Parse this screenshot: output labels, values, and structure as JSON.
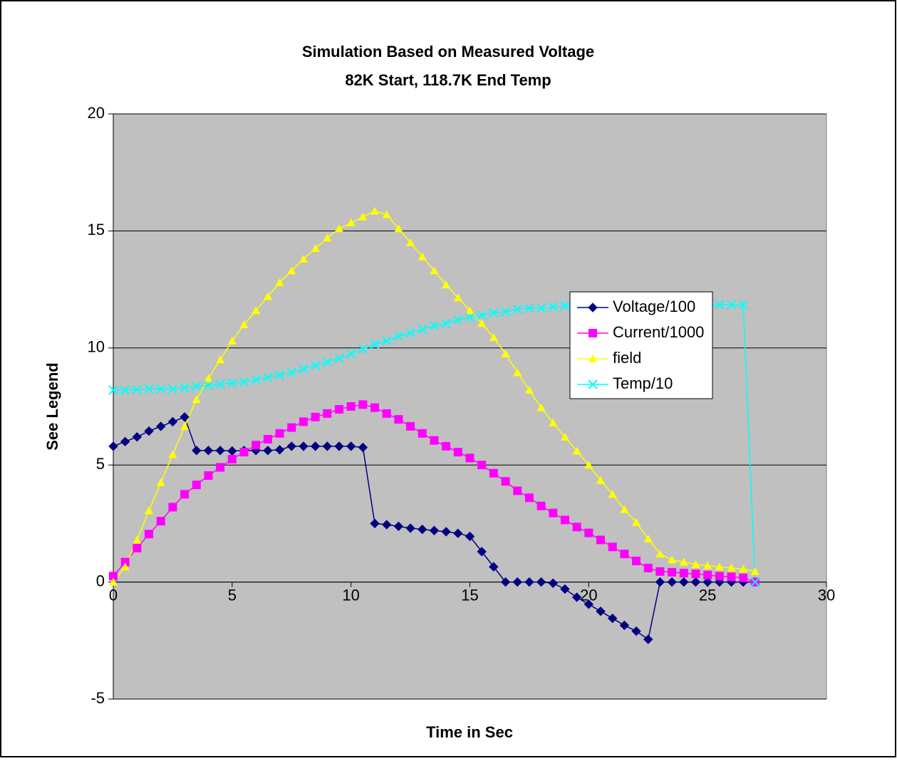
{
  "chart_data": {
    "type": "line",
    "title": "Simulation Based on Measured Voltage",
    "subtitle": "82K Start, 118.7K End Temp",
    "x_label": "Time in Sec",
    "y_label": "See Legend",
    "x": [
      0,
      0.5,
      1,
      1.5,
      2,
      2.5,
      3,
      3.5,
      4,
      4.5,
      5,
      5.5,
      6,
      6.5,
      7,
      7.5,
      8,
      8.5,
      9,
      9.5,
      10,
      10.5,
      11,
      11.5,
      12,
      12.5,
      13,
      13.5,
      14,
      14.5,
      15,
      15.5,
      16,
      16.5,
      17,
      17.5,
      18,
      18.5,
      19,
      19.5,
      20,
      20.5,
      21,
      21.5,
      22,
      22.5,
      23,
      23.5,
      24,
      24.5,
      25,
      25.5,
      26,
      26.5,
      27
    ],
    "series": [
      {
        "name": "Voltage/100",
        "color": "#000080",
        "marker": "diamond",
        "values": [
          5.8,
          6.0,
          6.2,
          6.45,
          6.65,
          6.85,
          7.05,
          5.62,
          5.62,
          5.62,
          5.6,
          5.62,
          5.62,
          5.62,
          5.65,
          5.8,
          5.8,
          5.8,
          5.8,
          5.8,
          5.8,
          5.75,
          2.5,
          2.45,
          2.38,
          2.3,
          2.25,
          2.2,
          2.15,
          2.08,
          1.95,
          1.3,
          0.65,
          0,
          0,
          0,
          0,
          -0.05,
          -0.3,
          -0.65,
          -0.95,
          -1.25,
          -1.55,
          -1.85,
          -2.1,
          -2.45,
          0,
          0,
          0,
          0,
          0,
          0,
          0,
          0,
          0
        ]
      },
      {
        "name": "Current/1000",
        "color": "#ff00ff",
        "marker": "square",
        "values": [
          0.25,
          0.85,
          1.45,
          2.05,
          2.6,
          3.2,
          3.75,
          4.15,
          4.55,
          4.9,
          5.25,
          5.55,
          5.85,
          6.1,
          6.35,
          6.6,
          6.85,
          7.05,
          7.2,
          7.38,
          7.5,
          7.58,
          7.45,
          7.2,
          6.95,
          6.65,
          6.35,
          6.05,
          5.8,
          5.55,
          5.3,
          5.0,
          4.65,
          4.3,
          3.9,
          3.6,
          3.25,
          2.95,
          2.65,
          2.35,
          2.1,
          1.8,
          1.5,
          1.2,
          0.9,
          0.6,
          0.45,
          0.42,
          0.38,
          0.35,
          0.3,
          0.25,
          0.22,
          0.18,
          0
        ]
      },
      {
        "name": "field",
        "color": "#ffff00",
        "marker": "triangle",
        "values": [
          0,
          0.65,
          1.8,
          3.05,
          4.25,
          5.45,
          6.65,
          7.8,
          8.7,
          9.5,
          10.3,
          11.0,
          11.6,
          12.2,
          12.8,
          13.3,
          13.8,
          14.25,
          14.7,
          15.1,
          15.35,
          15.6,
          15.85,
          15.7,
          15.1,
          14.5,
          13.9,
          13.3,
          12.7,
          12.15,
          11.6,
          11.05,
          10.45,
          9.75,
          8.95,
          8.2,
          7.45,
          6.8,
          6.2,
          5.6,
          5.0,
          4.35,
          3.75,
          3.1,
          2.55,
          1.85,
          1.2,
          0.95,
          0.85,
          0.75,
          0.7,
          0.65,
          0.6,
          0.55,
          0.45
        ]
      },
      {
        "name": "Temp/10",
        "color": "#00ffff",
        "marker": "x",
        "values": [
          8.2,
          8.2,
          8.22,
          8.25,
          8.25,
          8.25,
          8.3,
          8.35,
          8.4,
          8.45,
          8.5,
          8.55,
          8.65,
          8.75,
          8.85,
          8.95,
          9.1,
          9.25,
          9.4,
          9.55,
          9.75,
          9.95,
          10.15,
          10.3,
          10.5,
          10.65,
          10.8,
          10.95,
          11.05,
          11.2,
          11.3,
          11.4,
          11.5,
          11.55,
          11.65,
          11.7,
          11.7,
          11.75,
          11.8,
          11.8,
          11.82,
          11.82,
          11.83,
          11.83,
          11.84,
          11.84,
          11.85,
          11.85,
          11.85,
          11.85,
          11.85,
          11.85,
          11.85,
          11.85,
          0
        ]
      }
    ],
    "xlim": [
      0,
      30
    ],
    "xticks": [
      0,
      5,
      10,
      15,
      20,
      25,
      30
    ],
    "ylim": [
      -5,
      20
    ],
    "yticks": [
      -5,
      0,
      5,
      10,
      15,
      20
    ],
    "grid": true,
    "legend": "center-right"
  }
}
